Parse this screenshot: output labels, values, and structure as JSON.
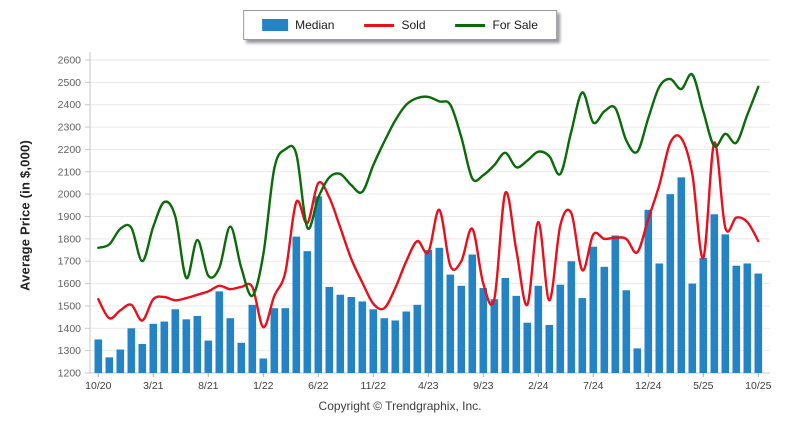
{
  "footer": {
    "text": "Copyright © Trendgraphix, Inc."
  },
  "legend": {
    "position": "top-center",
    "items": [
      {
        "label": "Median",
        "type": "bar",
        "color": "#2483c5"
      },
      {
        "label": "Sold",
        "type": "line",
        "color": "#e8101c"
      },
      {
        "label": "For Sale",
        "type": "line",
        "color": "#0b6b0b"
      }
    ]
  },
  "chart_data": {
    "type": "bar+line",
    "title": "",
    "xlabel": "",
    "ylabel": "Average Price (in $,000)",
    "ylim": [
      1200,
      2600
    ],
    "ytick_step": 100,
    "grid": true,
    "x_tick_every": 5,
    "x_tick_labels": [
      "10/20",
      "3/21",
      "8/21",
      "1/22",
      "6/22",
      "11/22",
      "4/23",
      "9/23",
      "2/24",
      "7/24",
      "12/24",
      "5/25",
      "10/25"
    ],
    "categories": [
      "10/20",
      "11/20",
      "12/20",
      "1/21",
      "2/21",
      "3/21",
      "4/21",
      "5/21",
      "6/21",
      "7/21",
      "8/21",
      "9/21",
      "10/21",
      "11/21",
      "12/21",
      "1/22",
      "2/22",
      "3/22",
      "4/22",
      "5/22",
      "6/22",
      "7/22",
      "8/22",
      "9/22",
      "10/22",
      "11/22",
      "12/22",
      "1/23",
      "2/23",
      "3/23",
      "4/23",
      "5/23",
      "6/23",
      "7/23",
      "8/23",
      "9/23",
      "10/23",
      "11/23",
      "12/23",
      "1/24",
      "2/24",
      "3/24",
      "4/24",
      "5/24",
      "6/24",
      "7/24",
      "8/24",
      "9/24",
      "10/24",
      "11/24",
      "12/24",
      "1/25",
      "2/25",
      "3/25",
      "4/25",
      "5/25",
      "6/25",
      "7/25",
      "8/25",
      "9/25",
      "10/25"
    ],
    "series": [
      {
        "name": "Median",
        "type": "bar",
        "color": "#2483c5",
        "values": [
          1350,
          1270,
          1305,
          1400,
          1330,
          1420,
          1430,
          1485,
          1440,
          1455,
          1345,
          1565,
          1445,
          1335,
          1505,
          1265,
          1490,
          1490,
          1810,
          1745,
          1990,
          1585,
          1550,
          1540,
          1520,
          1485,
          1445,
          1435,
          1475,
          1505,
          1750,
          1760,
          1640,
          1590,
          1730,
          1580,
          1530,
          1625,
          1545,
          1425,
          1590,
          1415,
          1595,
          1700,
          1535,
          1765,
          1675,
          1815,
          1570,
          1310,
          1930,
          1690,
          2000,
          2075,
          1600,
          1715,
          1910,
          1820,
          1680,
          1690,
          1645
        ]
      },
      {
        "name": "Sold",
        "type": "line",
        "color": "#e8101c",
        "values": [
          1530,
          1445,
          1480,
          1505,
          1435,
          1530,
          1540,
          1525,
          1535,
          1550,
          1565,
          1590,
          1575,
          1585,
          1585,
          1405,
          1545,
          1650,
          1965,
          1870,
          2050,
          1985,
          1850,
          1710,
          1605,
          1510,
          1490,
          1580,
          1700,
          1790,
          1740,
          1930,
          1680,
          1700,
          1845,
          1600,
          1530,
          2005,
          1750,
          1505,
          1875,
          1525,
          1860,
          1915,
          1660,
          1820,
          1800,
          1805,
          1800,
          1740,
          1890,
          2040,
          2230,
          2250,
          2090,
          1715,
          2230,
          1850,
          1895,
          1875,
          1790
        ]
      },
      {
        "name": "For Sale",
        "type": "line",
        "color": "#0b6b0b",
        "values": [
          1760,
          1775,
          1845,
          1850,
          1700,
          1855,
          1965,
          1900,
          1625,
          1795,
          1635,
          1670,
          1855,
          1670,
          1545,
          1730,
          2115,
          2200,
          2180,
          1850,
          1985,
          2075,
          2090,
          2040,
          2010,
          2130,
          2235,
          2330,
          2400,
          2430,
          2435,
          2415,
          2400,
          2255,
          2070,
          2085,
          2130,
          2185,
          2120,
          2150,
          2190,
          2170,
          2090,
          2280,
          2455,
          2320,
          2370,
          2385,
          2240,
          2190,
          2340,
          2480,
          2515,
          2470,
          2535,
          2370,
          2215,
          2270,
          2230,
          2355,
          2480
        ]
      }
    ],
    "axis_colors": {
      "tick_text": "#5f5f5f",
      "grid": "#e9e9e9",
      "axis_line": "#c9c9c9"
    }
  }
}
